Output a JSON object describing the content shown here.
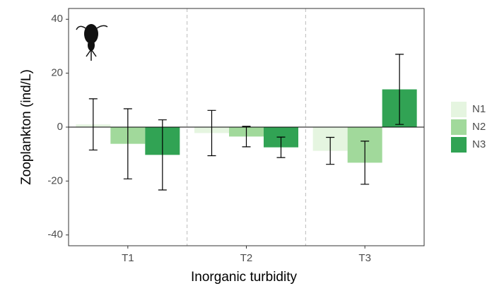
{
  "chart_data": {
    "type": "bar",
    "categories": [
      "T1",
      "T2",
      "T3"
    ],
    "series": [
      {
        "name": "N1",
        "color": "#e5f5e0",
        "values": [
          1.0,
          -2.2,
          -8.8
        ],
        "errors": [
          9.5,
          8.4,
          5.0
        ]
      },
      {
        "name": "N2",
        "color": "#a1d99b",
        "values": [
          -6.2,
          -3.5,
          -13.2
        ],
        "errors": [
          13.0,
          3.8,
          8.0
        ]
      },
      {
        "name": "N3",
        "color": "#31a354",
        "values": [
          -10.3,
          -7.5,
          14.0
        ],
        "errors": [
          13.0,
          3.8,
          13.0
        ]
      }
    ],
    "xlabel": "Inorganic turbidity",
    "ylabel": "Zooplankton (ind/L)",
    "ylim": [
      -44,
      44
    ],
    "yticks": [
      -40,
      -20,
      0,
      20,
      40
    ],
    "legend": "right"
  }
}
